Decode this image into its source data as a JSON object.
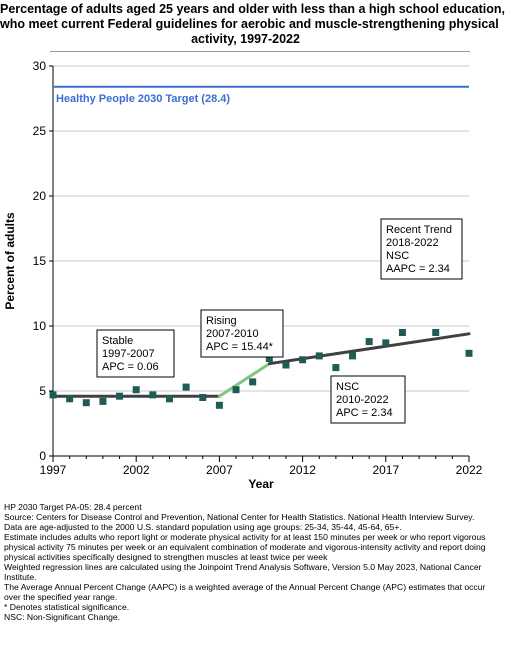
{
  "title_lines": [
    "Percentage of adults aged 25 years and older with less than a high school education,",
    "who meet current Federal guidelines for aerobic and muscle-strengthening physical",
    "activity, 1997-2022"
  ],
  "chart_data": {
    "type": "scatter",
    "xlabel": "Year",
    "ylabel": "Percent of adults",
    "xlim": [
      1997,
      2022
    ],
    "ylim": [
      0,
      30
    ],
    "x_ticks": [
      1997,
      2002,
      2007,
      2012,
      2017,
      2022
    ],
    "y_ticks": [
      0,
      5,
      10,
      15,
      20,
      25,
      30
    ],
    "grid": "horizontal",
    "points": [
      {
        "x": 1997,
        "y": 4.7
      },
      {
        "x": 1998,
        "y": 4.4
      },
      {
        "x": 1999,
        "y": 4.1
      },
      {
        "x": 2000,
        "y": 4.2
      },
      {
        "x": 2001,
        "y": 4.6
      },
      {
        "x": 2002,
        "y": 5.1
      },
      {
        "x": 2003,
        "y": 4.7
      },
      {
        "x": 2004,
        "y": 4.4
      },
      {
        "x": 2005,
        "y": 5.3
      },
      {
        "x": 2006,
        "y": 4.5
      },
      {
        "x": 2007,
        "y": 3.9
      },
      {
        "x": 2008,
        "y": 5.1
      },
      {
        "x": 2009,
        "y": 5.7
      },
      {
        "x": 2010,
        "y": 7.5
      },
      {
        "x": 2011,
        "y": 7.0
      },
      {
        "x": 2012,
        "y": 7.4
      },
      {
        "x": 2013,
        "y": 7.7
      },
      {
        "x": 2014,
        "y": 6.8
      },
      {
        "x": 2015,
        "y": 7.7
      },
      {
        "x": 2016,
        "y": 8.8
      },
      {
        "x": 2017,
        "y": 8.7
      },
      {
        "x": 2018,
        "y": 9.5
      },
      {
        "x": 2020,
        "y": 9.5
      },
      {
        "x": 2022,
        "y": 7.9
      }
    ],
    "trend_segments": [
      {
        "x": [
          1997,
          2007
        ],
        "y": [
          4.6,
          4.6
        ],
        "color": "#404040"
      },
      {
        "x": [
          2007,
          2010
        ],
        "y": [
          4.6,
          7.1
        ],
        "color": "#7ec87e"
      },
      {
        "x": [
          2010,
          2022
        ],
        "y": [
          7.1,
          9.4
        ],
        "color": "#404040"
      }
    ],
    "target": {
      "value": 28.4,
      "label": "Healthy People 2030 Target (28.4)",
      "color": "#3a6fd1"
    },
    "annotations": [
      {
        "lines": [
          "Stable",
          "1997-2007",
          "APC =  0.06"
        ]
      },
      {
        "lines": [
          "Rising",
          "2007-2010",
          "APC = 15.44*"
        ]
      },
      {
        "lines": [
          "NSC",
          "2010-2022",
          "APC =  2.34"
        ]
      },
      {
        "lines": [
          "Recent Trend",
          "2018-2022",
          "NSC",
          "AAPC =  2.34"
        ]
      }
    ],
    "colors": {
      "points": "#1f5c55",
      "grid": "#c8c8c8"
    }
  },
  "notes": [
    "HP 2030 Target PA-05: 28.4 percent",
    "Source: Centers for Disease Control and Prevention, National Center for Health Statistics. National Health Interview Survey.",
    "Data are age-adjusted to the 2000 U.S. standard population using age groups: 25-34, 35-44, 45-64, 65+.",
    "Estimate includes adults who report light or moderate physical activity for at least 150 minutes per week or who report vigorous physical activity 75 minutes per week or an equivalent combination of moderate and vigorous-intensity activity and report doing physical activities specifically designed to strengthen muscles at least twice per week",
    "Weighted regression lines are calculated using the Joinpoint Trend Analysis Software, Version 5.0 May 2023, National Cancer Institute.",
    "The Average Annual Percent Change (AAPC) is a weighted average of the Annual Percent Change (APC) estimates that occur over the specified year range.",
    "* Denotes statistical significance.",
    "NSC: Non-Significant Change."
  ]
}
